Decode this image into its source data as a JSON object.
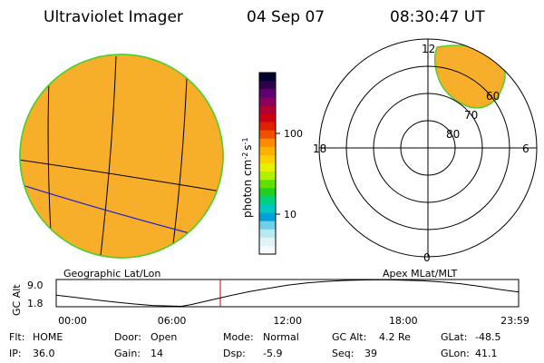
{
  "header": {
    "instrument": "Ultraviolet Imager",
    "date": "04 Sep 07",
    "time": "08:30:47 UT"
  },
  "colorbar": {
    "label": "photon cm",
    "label_sup1": "-2",
    "label_mid": "s",
    "label_sup2": "-1",
    "ticks": [
      "100",
      "10"
    ],
    "colors": [
      "#000030",
      "#30004a",
      "#600070",
      "#8a0060",
      "#b00030",
      "#cc0010",
      "#e02000",
      "#f05000",
      "#ff8a00",
      "#ffb000",
      "#ffd000",
      "#e8f000",
      "#b0f000",
      "#60e000",
      "#20d020",
      "#00d080",
      "#00c8c0",
      "#00a0d8",
      "#70d0e8",
      "#b8e8f0",
      "#e0f4f8",
      "#f4fafc"
    ]
  },
  "geo_panel": {
    "label": "Geographic Lat/Lon"
  },
  "polar_panel": {
    "label": "Apex MLat/MLT",
    "mlt_labels": {
      "top": "12",
      "left": "18",
      "right": "6",
      "bottom": "0"
    },
    "lat_labels": [
      "80",
      "70",
      "60"
    ]
  },
  "altitude_plot": {
    "axis_label": "GC Alt",
    "y_ticks": [
      "9.0",
      "1.8"
    ],
    "x_ticks": [
      "00:00",
      "06:00",
      "12:00",
      "18:00",
      "23:59"
    ],
    "current_time_hours": 8.51,
    "curve_hours": [
      0,
      1,
      2,
      3,
      4,
      5,
      6,
      6.5,
      7,
      8,
      9,
      10,
      11,
      12,
      13,
      14,
      15,
      16,
      17,
      18,
      19,
      20,
      21,
      22,
      23,
      23.98
    ],
    "curve_alt_re": [
      4.6,
      3.9,
      3.1,
      2.4,
      1.8,
      1.3,
      1.1,
      1.05,
      1.6,
      3.0,
      4.4,
      5.7,
      6.8,
      7.8,
      8.5,
      9.0,
      9.3,
      9.45,
      9.5,
      9.4,
      9.2,
      8.8,
      8.2,
      7.4,
      6.4,
      5.6
    ]
  },
  "status": {
    "flt_label": "Flt:",
    "flt_value": "HOME",
    "ip_label": "IP:",
    "ip_value": "36.0",
    "door_label": "Door:",
    "door_value": "Open",
    "gain_label": "Gain:",
    "gain_value": "14",
    "mode_label": "Mode:",
    "mode_value": "Normal",
    "dsp_label": "Dsp:",
    "dsp_value": "-5.9",
    "gcalt_label": "GC Alt:",
    "gcalt_value": "4.2 Re",
    "seq_label": "Seq:",
    "seq_value": "39",
    "glat_label": "GLat:",
    "glat_value": "-48.5",
    "glon_label": "GLon:",
    "glon_value": "41.1"
  },
  "colors": {
    "disk_base": "#f7b027",
    "disk_rim": "#4cd02a",
    "time_marker": "#cc0000",
    "geo_line_blue": "#2020cc"
  }
}
